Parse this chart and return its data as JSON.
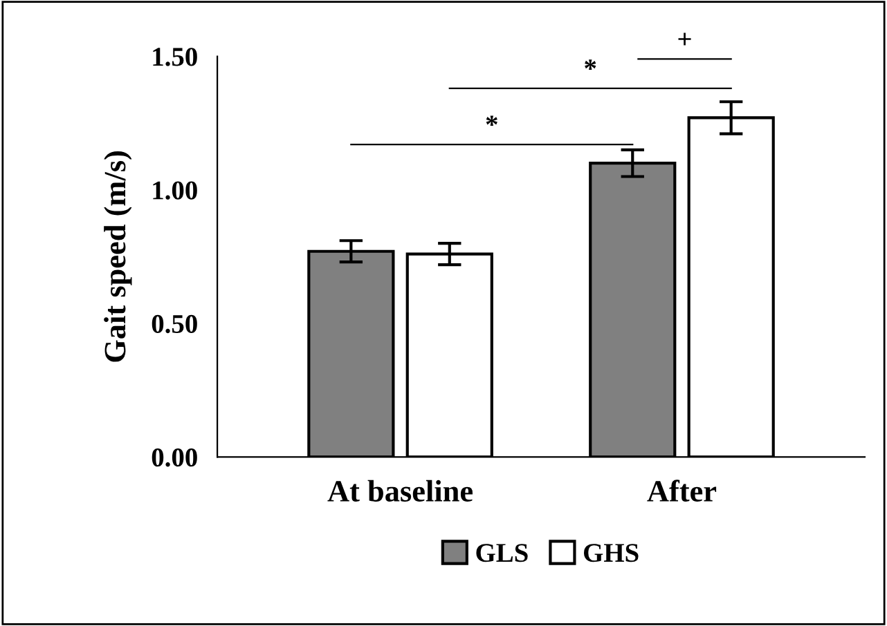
{
  "chart_data": {
    "type": "bar",
    "ylabel": "Gait speed (m/s)",
    "categories": [
      "At baseline",
      "After"
    ],
    "series": [
      {
        "name": "GLS",
        "color": "#808080",
        "values": [
          0.77,
          1.1
        ],
        "errors": [
          0.04,
          0.05
        ]
      },
      {
        "name": "GHS",
        "color": "#ffffff",
        "values": [
          0.76,
          1.27
        ],
        "errors": [
          0.04,
          0.06
        ]
      }
    ],
    "ylim": [
      0,
      1.5
    ],
    "yticks": [
      {
        "value": 0,
        "label": "0.00"
      },
      {
        "value": 0.5,
        "label": "0.50"
      },
      {
        "value": 1,
        "label": "1.00"
      },
      {
        "value": 1.5,
        "label": "1.50"
      }
    ],
    "annotations": [
      "*",
      "*",
      "+"
    ],
    "legend": "bottom",
    "grid": false
  }
}
